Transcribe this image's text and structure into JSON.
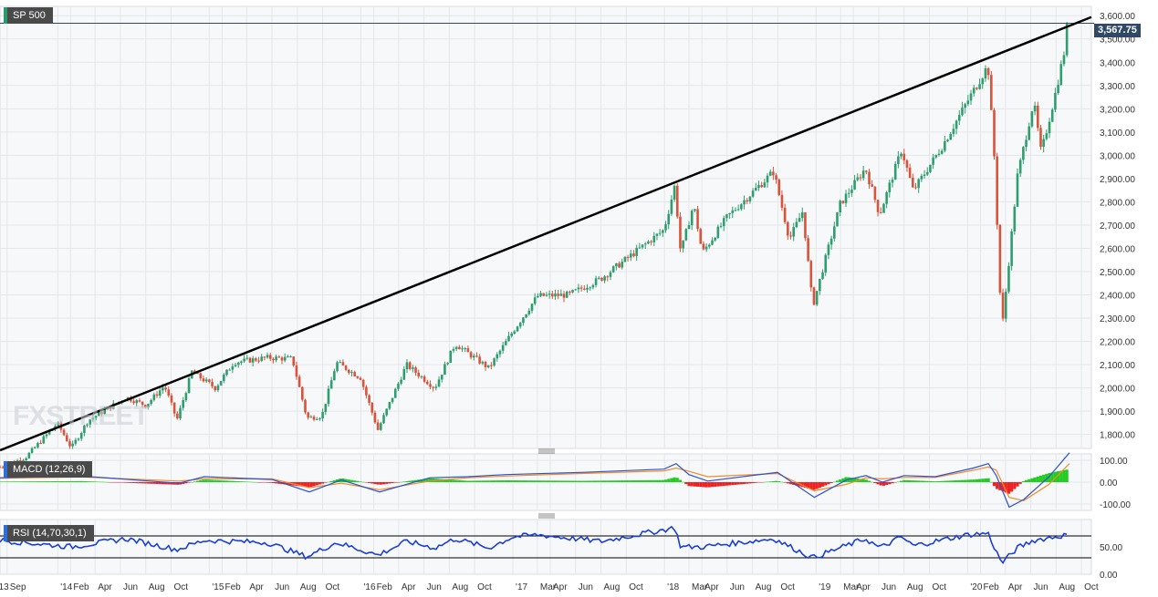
{
  "title": "SP 500",
  "last_price_label": "3,567.75",
  "watermark": "FXSTREET",
  "colors": {
    "up": "#2e9e6e",
    "down": "#d9533b",
    "trendline": "#000000",
    "macd_line": "#2a52d4",
    "signal_line": "#f28c28",
    "hist_pos": "#22cc22",
    "hist_neg": "#ee2222",
    "rsi": "#1a3fd9"
  },
  "chart_data": [
    {
      "type": "candlestick",
      "title": "SP 500",
      "y_ticks": [
        "1,800.00",
        "1,900.00",
        "2,000.00",
        "2,100.00",
        "2,200.00",
        "2,300.00",
        "2,400.00",
        "2,500.00",
        "2,600.00",
        "2,700.00",
        "2,800.00",
        "2,900.00",
        "3,000.00",
        "3,100.00",
        "3,200.00",
        "3,300.00",
        "3,400.00",
        "3,500.00",
        "3,600.00"
      ],
      "y_tick_values": [
        1800,
        1900,
        2000,
        2100,
        2200,
        2300,
        2400,
        2500,
        2600,
        2700,
        2800,
        2900,
        3000,
        3100,
        3200,
        3300,
        3400,
        3500,
        3600
      ],
      "ylim": [
        1740,
        3640
      ],
      "x_range": [
        "2013-08-15",
        "2020-10-25"
      ],
      "x_ticks": [
        {
          "date": "2013-08-01",
          "label": "'13"
        },
        {
          "date": "2013-09-01",
          "label": "Sep"
        },
        {
          "date": "2014-01-01",
          "label": "'14"
        },
        {
          "date": "2014-02-01",
          "label": "Feb"
        },
        {
          "date": "2014-04-01",
          "label": "Apr"
        },
        {
          "date": "2014-06-01",
          "label": "Jun"
        },
        {
          "date": "2014-08-01",
          "label": "Aug"
        },
        {
          "date": "2014-10-01",
          "label": "Oct"
        },
        {
          "date": "2015-01-01",
          "label": "'15"
        },
        {
          "date": "2015-02-01",
          "label": "Feb"
        },
        {
          "date": "2015-04-01",
          "label": "Apr"
        },
        {
          "date": "2015-06-01",
          "label": "Jun"
        },
        {
          "date": "2015-08-01",
          "label": "Aug"
        },
        {
          "date": "2015-10-01",
          "label": "Oct"
        },
        {
          "date": "2016-01-01",
          "label": "'16"
        },
        {
          "date": "2016-02-01",
          "label": "Feb"
        },
        {
          "date": "2016-04-01",
          "label": "Apr"
        },
        {
          "date": "2016-06-01",
          "label": "Jun"
        },
        {
          "date": "2016-08-01",
          "label": "Aug"
        },
        {
          "date": "2016-10-01",
          "label": "Oct"
        },
        {
          "date": "2017-01-01",
          "label": "'17"
        },
        {
          "date": "2017-03-01",
          "label": "Mar"
        },
        {
          "date": "2017-04-01",
          "label": "Apr"
        },
        {
          "date": "2017-06-01",
          "label": "Jun"
        },
        {
          "date": "2017-08-01",
          "label": "Aug"
        },
        {
          "date": "2017-10-01",
          "label": "Oct"
        },
        {
          "date": "2018-01-01",
          "label": "'18"
        },
        {
          "date": "2018-03-01",
          "label": "Mar"
        },
        {
          "date": "2018-04-01",
          "label": "Apr"
        },
        {
          "date": "2018-06-01",
          "label": "Jun"
        },
        {
          "date": "2018-08-01",
          "label": "Aug"
        },
        {
          "date": "2018-10-01",
          "label": "Oct"
        },
        {
          "date": "2019-01-01",
          "label": "'19"
        },
        {
          "date": "2019-03-01",
          "label": "Mar"
        },
        {
          "date": "2019-04-01",
          "label": "Apr"
        },
        {
          "date": "2019-06-01",
          "label": "Jun"
        },
        {
          "date": "2019-08-01",
          "label": "Aug"
        },
        {
          "date": "2019-10-01",
          "label": "Oct"
        },
        {
          "date": "2020-01-01",
          "label": "'20"
        },
        {
          "date": "2020-02-01",
          "label": "Feb"
        },
        {
          "date": "2020-04-01",
          "label": "Apr"
        },
        {
          "date": "2020-06-01",
          "label": "Jun"
        },
        {
          "date": "2020-08-01",
          "label": "Aug"
        },
        {
          "date": "2020-10-01",
          "label": "Oct"
        }
      ],
      "weekly_close_path": [
        [
          "2013-08-15",
          1660
        ],
        [
          "2013-10-15",
          1700
        ],
        [
          "2013-12-31",
          1848
        ],
        [
          "2014-02-03",
          1742
        ],
        [
          "2014-03-15",
          1860
        ],
        [
          "2014-06-15",
          1960
        ],
        [
          "2014-08-01",
          1925
        ],
        [
          "2014-09-15",
          2010
        ],
        [
          "2014-10-15",
          1862
        ],
        [
          "2014-11-20",
          2070
        ],
        [
          "2015-01-15",
          2000
        ],
        [
          "2015-03-01",
          2110
        ],
        [
          "2015-05-20",
          2130
        ],
        [
          "2015-07-20",
          2125
        ],
        [
          "2015-08-24",
          1870
        ],
        [
          "2015-09-29",
          1880
        ],
        [
          "2015-11-03",
          2110
        ],
        [
          "2015-12-31",
          2044
        ],
        [
          "2016-02-11",
          1820
        ],
        [
          "2016-04-20",
          2100
        ],
        [
          "2016-06-27",
          2000
        ],
        [
          "2016-08-15",
          2190
        ],
        [
          "2016-11-04",
          2085
        ],
        [
          "2016-12-31",
          2240
        ],
        [
          "2017-03-01",
          2395
        ],
        [
          "2017-05-15",
          2400
        ],
        [
          "2017-08-01",
          2470
        ],
        [
          "2017-12-31",
          2680
        ],
        [
          "2018-01-26",
          2872
        ],
        [
          "2018-02-09",
          2580
        ],
        [
          "2018-03-12",
          2790
        ],
        [
          "2018-04-02",
          2580
        ],
        [
          "2018-06-01",
          2735
        ],
        [
          "2018-09-21",
          2930
        ],
        [
          "2018-10-29",
          2640
        ],
        [
          "2018-11-30",
          2760
        ],
        [
          "2018-12-24",
          2350
        ],
        [
          "2019-02-28",
          2790
        ],
        [
          "2019-04-30",
          2945
        ],
        [
          "2019-06-03",
          2745
        ],
        [
          "2019-07-26",
          3025
        ],
        [
          "2019-08-23",
          2847
        ],
        [
          "2019-10-31",
          3037
        ],
        [
          "2019-12-31",
          3230
        ],
        [
          "2020-02-19",
          3386
        ],
        [
          "2020-03-06",
          2970
        ],
        [
          "2020-03-23",
          2237
        ],
        [
          "2020-04-30",
          2912
        ],
        [
          "2020-06-08",
          3232
        ],
        [
          "2020-06-26",
          3009
        ],
        [
          "2020-07-31",
          3271
        ],
        [
          "2020-08-28",
          3508
        ],
        [
          "2020-09-02",
          3567.75
        ]
      ],
      "trendline": [
        [
          "2013-08-15",
          1732
        ],
        [
          "2020-10-25",
          3594
        ]
      ],
      "last_price": 3567.75
    },
    {
      "type": "line",
      "title": "MACD (12,26,9)",
      "y_ticks": [
        "100.00",
        "0.00",
        "-100.00"
      ],
      "y_tick_values": [
        100,
        0,
        -100
      ],
      "ylim": [
        -130,
        130
      ],
      "series": [
        {
          "name": "MACD",
          "points": [
            [
              "2013-08-15",
              20
            ],
            [
              "2014-03-01",
              28
            ],
            [
              "2014-10-20",
              -5
            ],
            [
              "2014-12-20",
              25
            ],
            [
              "2015-06-01",
              12
            ],
            [
              "2015-08-30",
              -45
            ],
            [
              "2015-11-15",
              10
            ],
            [
              "2016-02-15",
              -45
            ],
            [
              "2016-06-15",
              20
            ],
            [
              "2016-09-15",
              25
            ],
            [
              "2016-12-15",
              35
            ],
            [
              "2017-06-15",
              45
            ],
            [
              "2017-12-31",
              60
            ],
            [
              "2018-01-29",
              85
            ],
            [
              "2018-03-01",
              35
            ],
            [
              "2018-04-15",
              5
            ],
            [
              "2018-09-30",
              45
            ],
            [
              "2018-12-28",
              -70
            ],
            [
              "2019-03-15",
              10
            ],
            [
              "2019-05-01",
              30
            ],
            [
              "2019-06-10",
              0
            ],
            [
              "2019-08-01",
              30
            ],
            [
              "2019-10-15",
              25
            ],
            [
              "2020-01-15",
              65
            ],
            [
              "2020-02-20",
              85
            ],
            [
              "2020-03-10",
              30
            ],
            [
              "2020-04-10",
              -115
            ],
            [
              "2020-05-15",
              -80
            ],
            [
              "2020-07-15",
              25
            ],
            [
              "2020-09-02",
              135
            ]
          ]
        },
        {
          "name": "Signal",
          "points": [
            [
              "2013-08-15",
              18
            ],
            [
              "2014-03-01",
              24
            ],
            [
              "2014-10-20",
              5
            ],
            [
              "2014-12-20",
              15
            ],
            [
              "2015-06-01",
              15
            ],
            [
              "2015-08-30",
              -25
            ],
            [
              "2015-11-15",
              -5
            ],
            [
              "2016-02-15",
              -35
            ],
            [
              "2016-06-15",
              5
            ],
            [
              "2016-09-15",
              20
            ],
            [
              "2016-12-15",
              28
            ],
            [
              "2017-06-15",
              40
            ],
            [
              "2017-12-31",
              52
            ],
            [
              "2018-01-29",
              65
            ],
            [
              "2018-03-01",
              50
            ],
            [
              "2018-04-15",
              25
            ],
            [
              "2018-09-30",
              40
            ],
            [
              "2018-12-28",
              -40
            ],
            [
              "2019-03-15",
              -10
            ],
            [
              "2019-05-01",
              20
            ],
            [
              "2019-06-10",
              15
            ],
            [
              "2019-08-01",
              22
            ],
            [
              "2019-10-15",
              22
            ],
            [
              "2020-01-15",
              55
            ],
            [
              "2020-02-20",
              70
            ],
            [
              "2020-03-10",
              55
            ],
            [
              "2020-04-10",
              -70
            ],
            [
              "2020-05-15",
              -85
            ],
            [
              "2020-07-15",
              -10
            ],
            [
              "2020-09-02",
              85
            ]
          ]
        }
      ]
    },
    {
      "type": "line",
      "title": "RSI (14,70,30,1)",
      "y_ticks": [
        "50.00",
        "0.00"
      ],
      "y_tick_values": [
        50,
        0
      ],
      "ylim": [
        0,
        100
      ],
      "levels": [
        70,
        30
      ],
      "series": [
        {
          "name": "RSI",
          "points": [
            [
              "2013-08-15",
              62
            ],
            [
              "2014-02-03",
              50
            ],
            [
              "2014-06-15",
              65
            ],
            [
              "2014-10-15",
              45
            ],
            [
              "2014-12-20",
              62
            ],
            [
              "2015-05-20",
              58
            ],
            [
              "2015-08-24",
              32
            ],
            [
              "2015-11-03",
              58
            ],
            [
              "2016-02-11",
              35
            ],
            [
              "2016-04-20",
              60
            ],
            [
              "2016-06-27",
              48
            ],
            [
              "2016-08-15",
              65
            ],
            [
              "2016-11-04",
              48
            ],
            [
              "2016-12-31",
              68
            ],
            [
              "2017-03-01",
              72
            ],
            [
              "2017-08-01",
              60
            ],
            [
              "2018-01-26",
              85
            ],
            [
              "2018-02-09",
              50
            ],
            [
              "2018-04-02",
              50
            ],
            [
              "2018-09-21",
              65
            ],
            [
              "2018-12-24",
              30
            ],
            [
              "2019-04-30",
              65
            ],
            [
              "2019-06-03",
              48
            ],
            [
              "2019-07-26",
              68
            ],
            [
              "2019-08-23",
              52
            ],
            [
              "2019-12-31",
              72
            ],
            [
              "2020-02-19",
              75
            ],
            [
              "2020-03-23",
              20
            ],
            [
              "2020-04-30",
              48
            ],
            [
              "2020-06-08",
              62
            ],
            [
              "2020-08-28",
              72
            ],
            [
              "2020-09-02",
              74
            ]
          ]
        }
      ]
    }
  ]
}
